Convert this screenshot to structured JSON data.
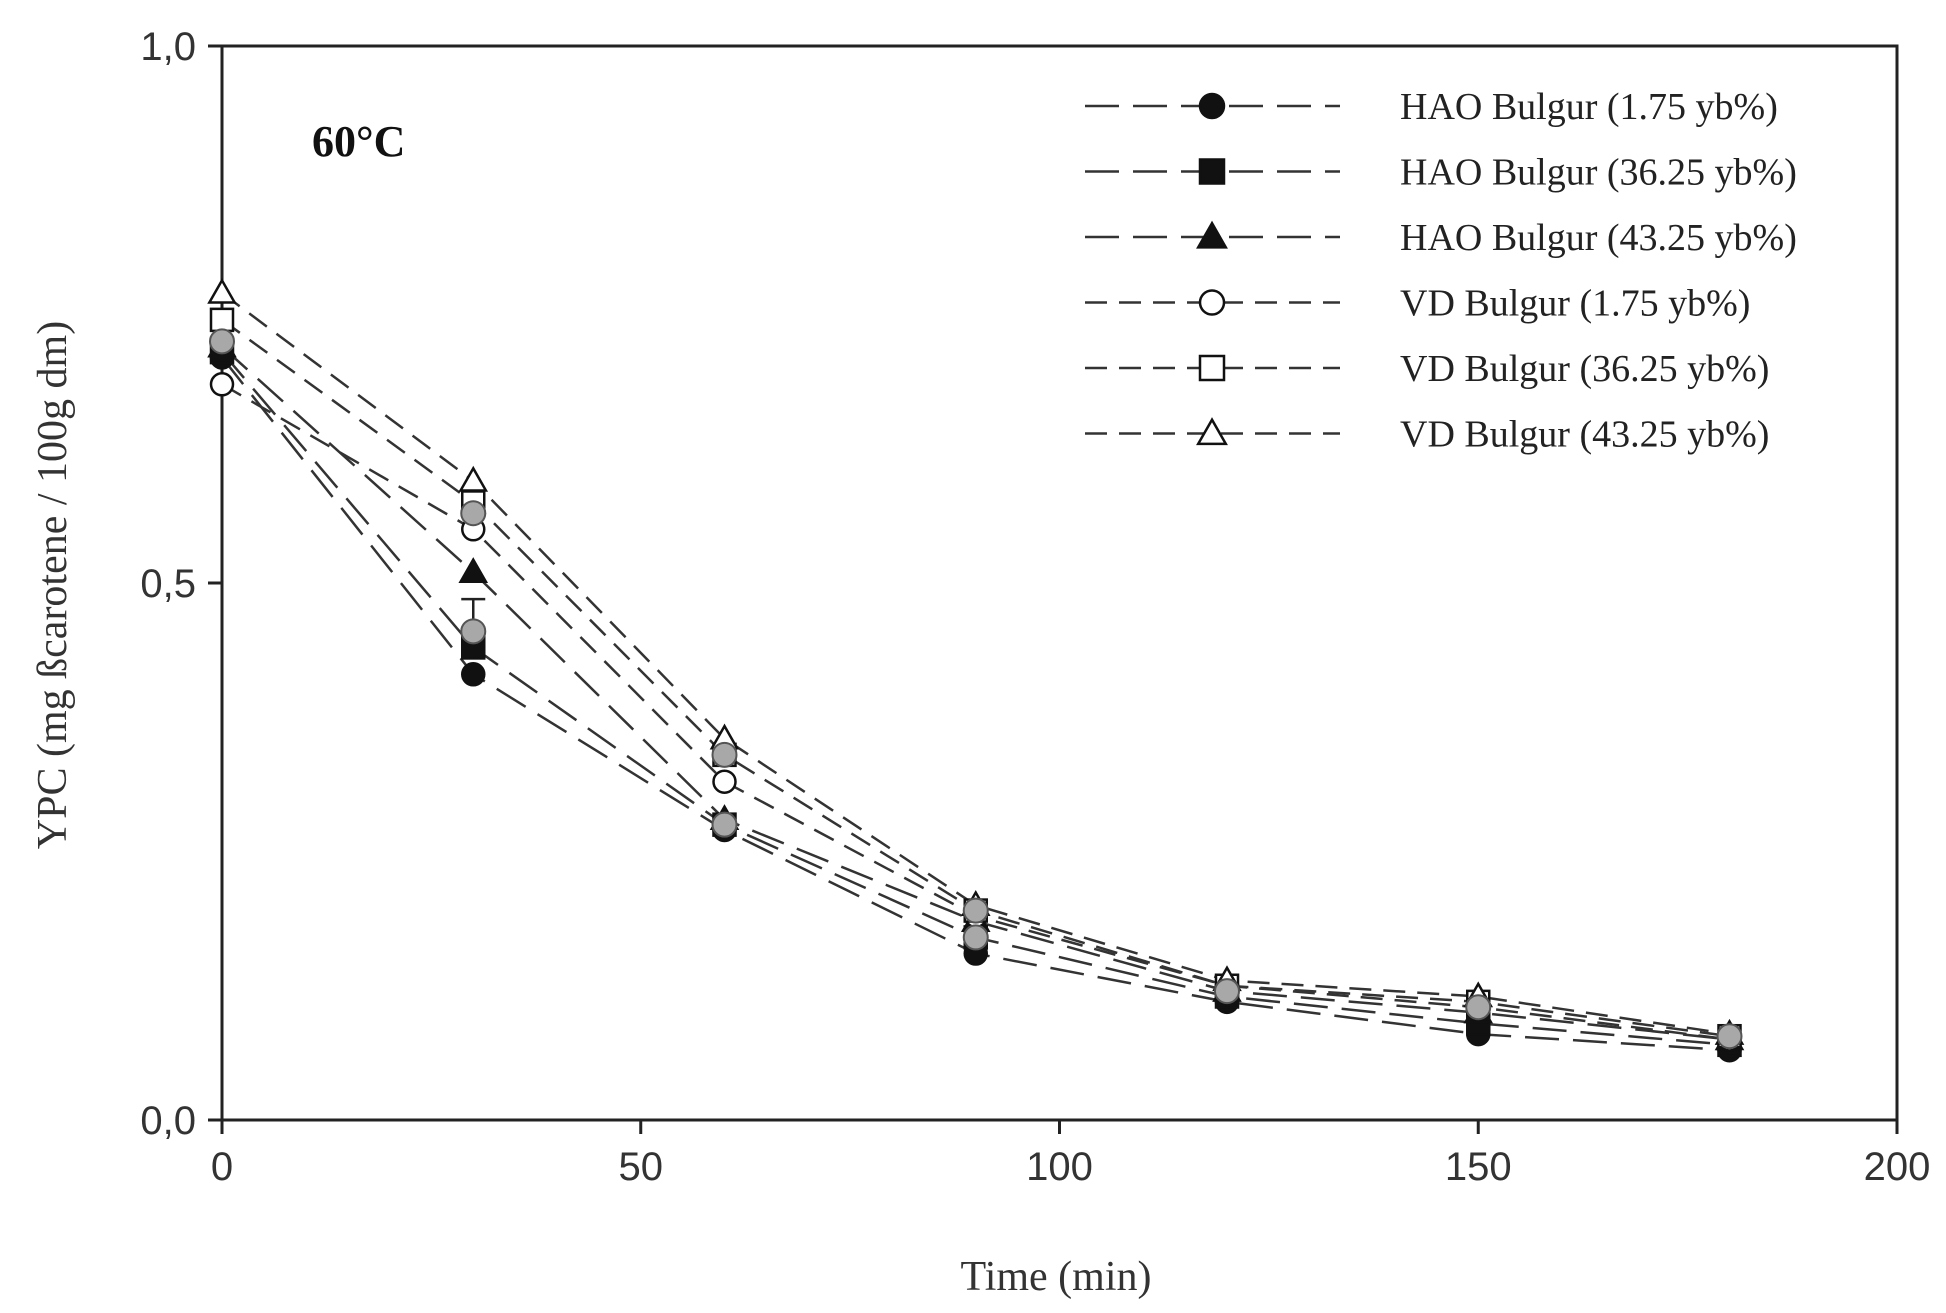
{
  "chart_data": {
    "type": "line",
    "title": "",
    "annotation": "60°C",
    "xlabel": "Time (min)",
    "ylabel": "YPC (mg ßcarotene / 100g dm)",
    "xlim": [
      0,
      200
    ],
    "ylim": [
      0.0,
      1.0
    ],
    "xticks": [
      0,
      50,
      100,
      150,
      200
    ],
    "xtick_labels": [
      "0",
      "50",
      "100",
      "150",
      "200"
    ],
    "yticks": [
      0.0,
      0.5,
      1.0
    ],
    "ytick_labels": [
      "0,0",
      "0,5",
      "1,0"
    ],
    "grid": false,
    "legend_position": "top-right",
    "x": [
      0,
      30,
      60,
      90,
      120,
      150,
      180
    ],
    "series": [
      {
        "name": "HAO Bulgur (1.75 yb%)",
        "marker": "circle-filled",
        "line": "long-dash",
        "values": [
          0.71,
          0.415,
          0.27,
          0.155,
          0.11,
          0.08,
          0.065
        ]
      },
      {
        "name": "HAO Bulgur (36.25 yb%)",
        "marker": "square-filled",
        "line": "long-dash",
        "values": [
          0.715,
          0.44,
          0.275,
          0.17,
          0.115,
          0.09,
          0.07
        ]
      },
      {
        "name": "HAO Bulgur (43.25 yb%)",
        "marker": "triangle-filled",
        "line": "long-dash",
        "values": [
          0.72,
          0.51,
          0.28,
          0.185,
          0.12,
          0.1,
          0.075
        ]
      },
      {
        "name": "VD Bulgur (1.75 yb%)",
        "marker": "circle-open",
        "line": "short-dash",
        "values": [
          0.685,
          0.55,
          0.315,
          0.19,
          0.125,
          0.105,
          0.075
        ]
      },
      {
        "name": "VD Bulgur (36.25 yb%)",
        "marker": "square-open",
        "line": "short-dash",
        "values": [
          0.745,
          0.575,
          0.34,
          0.195,
          0.125,
          0.11,
          0.078
        ]
      },
      {
        "name": "VD Bulgur (43.25 yb%)",
        "marker": "triangle-open",
        "line": "short-dash",
        "values": [
          0.77,
          0.595,
          0.355,
          0.2,
          0.13,
          0.115,
          0.08
        ]
      }
    ],
    "overlay_grey_points": {
      "description": "grey filled circles drawn over several series",
      "points": [
        [
          0,
          0.725
        ],
        [
          30,
          0.455
        ],
        [
          30,
          0.565
        ],
        [
          60,
          0.275
        ],
        [
          60,
          0.34
        ],
        [
          90,
          0.17
        ],
        [
          90,
          0.195
        ],
        [
          120,
          0.12
        ],
        [
          150,
          0.105
        ],
        [
          180,
          0.078
        ]
      ]
    },
    "error_bars": [
      {
        "x": 0,
        "low": 0.705,
        "high": 0.755
      },
      {
        "x": 30,
        "low": 0.43,
        "high": 0.485
      }
    ],
    "colors": {
      "line": "#333333",
      "marker_fill": "#111111",
      "grey_marker": "#a8a8a8",
      "axis": "#222222"
    }
  }
}
